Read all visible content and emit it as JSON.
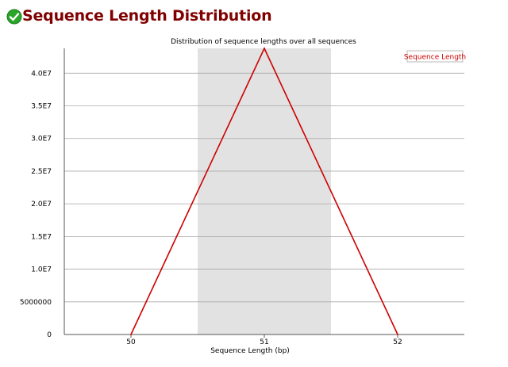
{
  "header": {
    "status": "pass",
    "status_icon": "check-circle-icon",
    "status_color": "#22aa22",
    "title": "Sequence Length Distribution"
  },
  "chart_data": {
    "type": "line",
    "title": "Distribution of sequence lengths over all sequences",
    "xlabel": "Sequence Length (bp)",
    "ylabel": "",
    "x": [
      50,
      51,
      52
    ],
    "x_tick_labels": [
      "50",
      "51",
      "52"
    ],
    "series": [
      {
        "name": "Sequence Length",
        "color": "#cc0000",
        "values": [
          0,
          43800000,
          0
        ]
      }
    ],
    "ylim": [
      0,
      43800000
    ],
    "y_ticks": [
      0,
      5000000,
      10000000,
      15000000,
      20000000,
      25000000,
      30000000,
      35000000,
      40000000
    ],
    "y_tick_labels": [
      "0",
      "5000000",
      "1.0E7",
      "1.5E7",
      "2.0E7",
      "2.5E7",
      "3.0E7",
      "3.5E7",
      "4.0E7"
    ],
    "highlight_band": {
      "x": 51
    },
    "grid": true,
    "legend": "top-right"
  }
}
